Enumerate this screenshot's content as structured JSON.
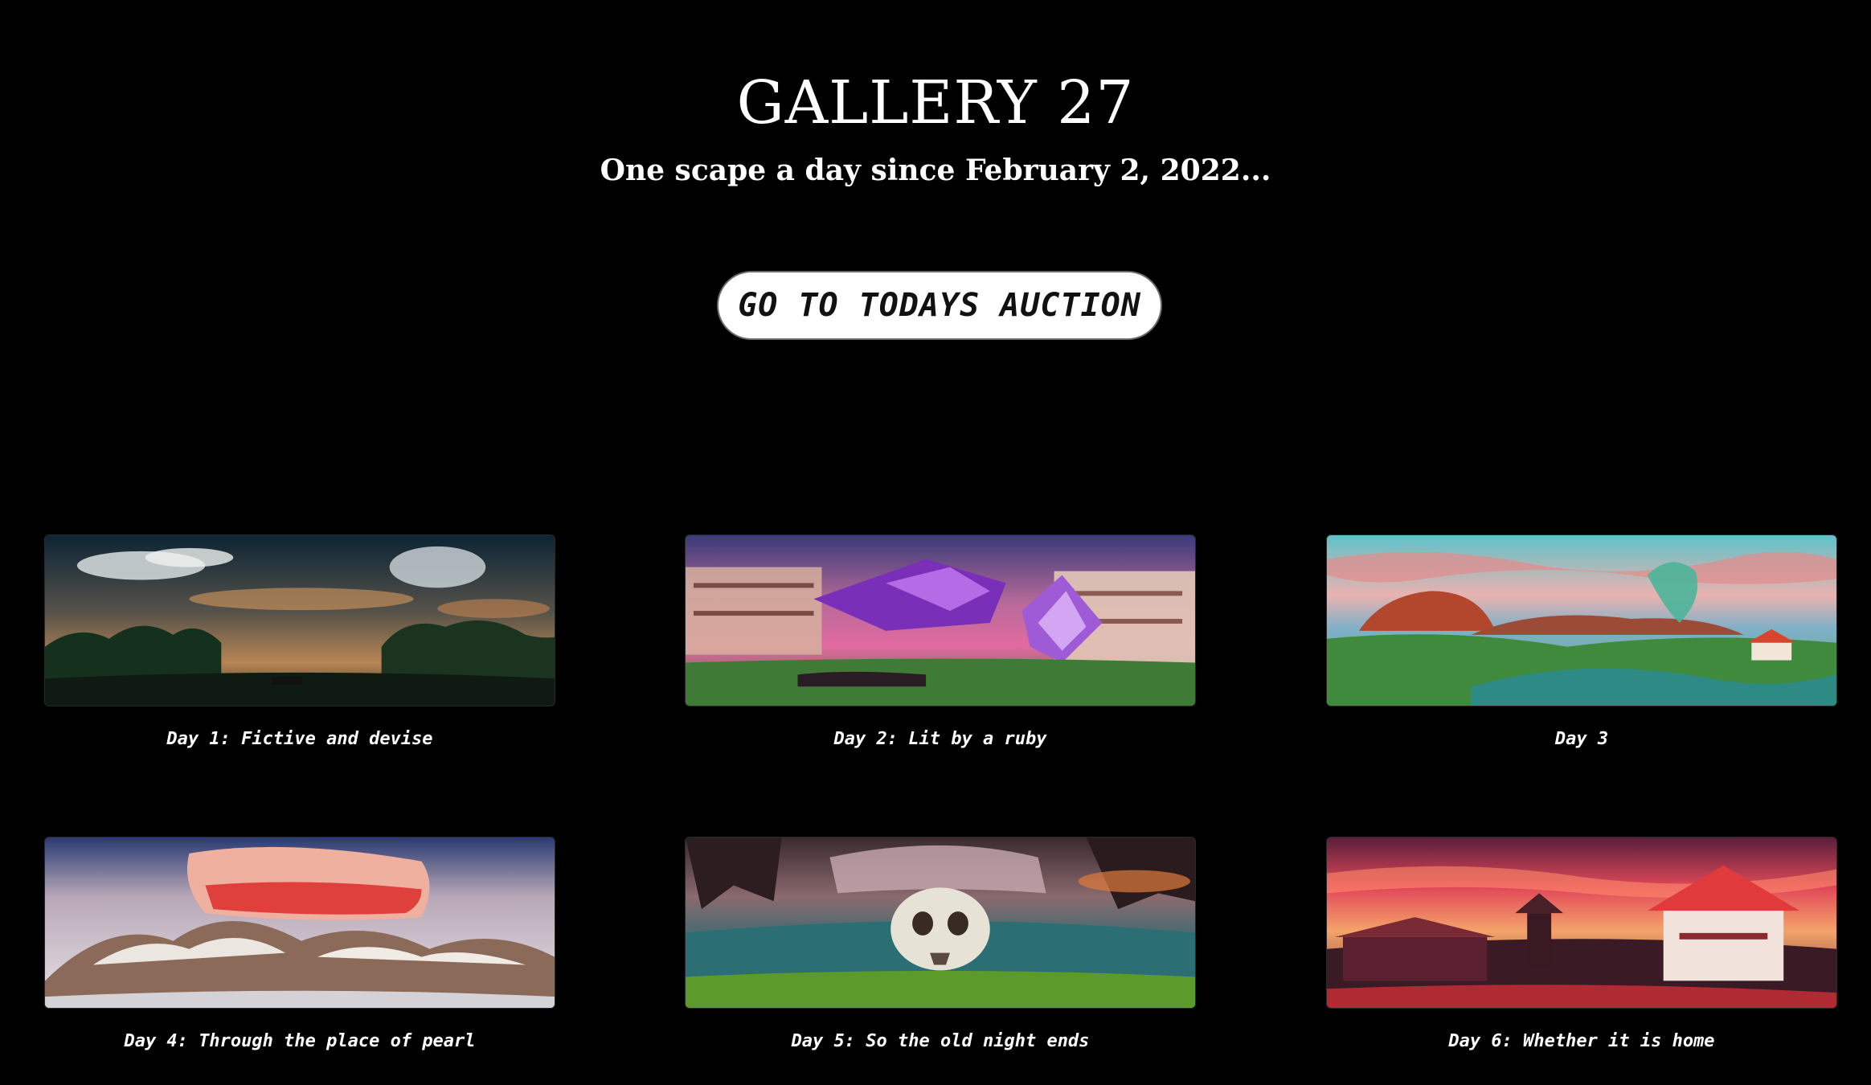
{
  "header": {
    "title": "GALLERY 27",
    "subtitle": "One scape a day since February 2, 2022..."
  },
  "auction_button": {
    "label": "GO TO TODAYS AUCTION"
  },
  "gallery": [
    {
      "caption": "Day 1: Fictive and devise"
    },
    {
      "caption": "Day 2: Lit by a ruby"
    },
    {
      "caption": "Day 3"
    },
    {
      "caption": "Day 4: Through the place of pearl"
    },
    {
      "caption": "Day 5: So the old night ends"
    },
    {
      "caption": "Day 6: Whether it is home"
    }
  ],
  "colors": {
    "background": "#000000",
    "text": "#ffffff",
    "button_background": "#ffffff",
    "button_text": "#111111"
  }
}
